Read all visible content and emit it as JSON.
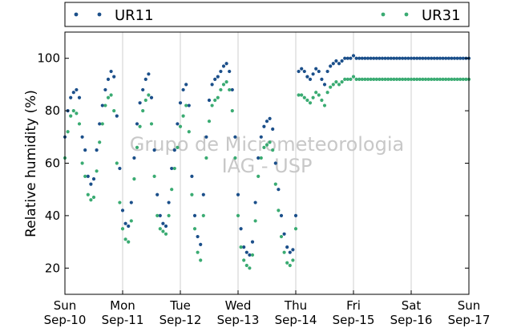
{
  "chart_data": {
    "type": "scatter",
    "title": "",
    "xlabel": "",
    "ylabel": "Relative humidity (%)",
    "xlim": [
      "2011-09-10 00:00",
      "2011-09-17 00:00"
    ],
    "ylim": [
      10,
      110
    ],
    "yticks": [
      20,
      40,
      60,
      80,
      100
    ],
    "grid": "vertical-day-lines",
    "legend": "top",
    "xticks": [
      {
        "day": "Sun",
        "date": "Sep-10"
      },
      {
        "day": "Mon",
        "date": "Sep-11"
      },
      {
        "day": "Tue",
        "date": "Sep-12"
      },
      {
        "day": "Wed",
        "date": "Sep-13"
      },
      {
        "day": "Thu",
        "date": "Sep-14"
      },
      {
        "day": "Fri",
        "date": "Sep-15"
      },
      {
        "day": "Sat",
        "date": "Sep-16"
      },
      {
        "day": "Sun",
        "date": "Sep-17"
      }
    ],
    "watermark": [
      "Grupo de Micrometeorologia",
      "IAG - USP"
    ],
    "series": [
      {
        "name": "UR11",
        "color": "#1b4f8a",
        "x_days": [
          0,
          0.05,
          0.1,
          0.15,
          0.2,
          0.25,
          0.3,
          0.35,
          0.4,
          0.45,
          0.5,
          0.55,
          0.6,
          0.65,
          0.7,
          0.75,
          0.8,
          0.85,
          0.9,
          0.95,
          1.0,
          1.05,
          1.1,
          1.15,
          1.2,
          1.25,
          1.3,
          1.35,
          1.4,
          1.45,
          1.5,
          1.55,
          1.6,
          1.65,
          1.7,
          1.75,
          1.8,
          1.85,
          1.9,
          1.95,
          2.0,
          2.05,
          2.1,
          2.15,
          2.2,
          2.25,
          2.3,
          2.35,
          2.4,
          2.45,
          2.5,
          2.55,
          2.6,
          2.65,
          2.7,
          2.75,
          2.8,
          2.85,
          2.9,
          2.95,
          3.0,
          3.05,
          3.1,
          3.15,
          3.2,
          3.25,
          3.3,
          3.35,
          3.4,
          3.45,
          3.5,
          3.55,
          3.6,
          3.65,
          3.7,
          3.75,
          3.8,
          3.85,
          3.9,
          3.95,
          4.0,
          4.05,
          4.1,
          4.15,
          4.2,
          4.25,
          4.3,
          4.35,
          4.4,
          4.45,
          4.5,
          4.55,
          4.6,
          4.65,
          4.7,
          4.75,
          4.8,
          4.85,
          4.9,
          4.95,
          5.0,
          5.05,
          5.1,
          5.15,
          5.2,
          5.25,
          5.3,
          5.35,
          5.4,
          5.45,
          5.5,
          5.55,
          5.6,
          5.65,
          5.7,
          5.75,
          5.8,
          5.85,
          5.9,
          5.95,
          6.0,
          6.05,
          6.1,
          6.15,
          6.2,
          6.25,
          6.3,
          6.35,
          6.4,
          6.45,
          6.5,
          6.55,
          6.6,
          6.65,
          6.7,
          6.75,
          6.8,
          6.85,
          6.9,
          6.95,
          7.0
        ],
        "values": [
          70,
          80,
          85,
          87,
          88,
          85,
          70,
          65,
          55,
          52,
          54,
          65,
          75,
          82,
          88,
          92,
          95,
          93,
          78,
          58,
          42,
          37,
          36,
          45,
          62,
          75,
          83,
          88,
          92,
          94,
          85,
          65,
          48,
          40,
          37,
          36,
          45,
          58,
          65,
          75,
          83,
          88,
          90,
          82,
          55,
          40,
          32,
          29,
          48,
          70,
          84,
          90,
          92,
          93,
          95,
          97,
          98,
          95,
          88,
          70,
          48,
          35,
          28,
          26,
          25,
          30,
          45,
          62,
          70,
          74,
          76,
          77,
          73,
          60,
          50,
          40,
          33,
          28,
          26,
          27,
          40,
          95,
          96,
          95,
          93,
          92,
          94,
          96,
          95,
          92,
          90,
          95,
          97,
          98,
          99,
          98,
          99,
          100,
          100,
          100,
          101,
          100,
          100,
          100,
          100,
          100,
          100,
          100,
          100,
          100,
          100,
          100,
          100,
          100,
          100,
          100,
          100,
          100,
          100,
          100,
          100,
          100,
          100,
          100,
          100,
          100,
          100,
          100,
          100,
          100,
          100,
          100,
          100,
          100,
          100,
          100,
          100,
          100,
          100,
          100,
          100
        ]
      },
      {
        "name": "UR31",
        "color": "#3aab72",
        "x_days": [
          0,
          0.05,
          0.1,
          0.15,
          0.2,
          0.25,
          0.3,
          0.35,
          0.4,
          0.45,
          0.5,
          0.55,
          0.6,
          0.65,
          0.7,
          0.75,
          0.8,
          0.85,
          0.9,
          0.95,
          1.0,
          1.05,
          1.1,
          1.15,
          1.2,
          1.25,
          1.3,
          1.35,
          1.4,
          1.45,
          1.5,
          1.55,
          1.6,
          1.65,
          1.7,
          1.75,
          1.8,
          1.85,
          1.9,
          1.95,
          2.0,
          2.05,
          2.1,
          2.15,
          2.2,
          2.25,
          2.3,
          2.35,
          2.4,
          2.45,
          2.5,
          2.55,
          2.6,
          2.65,
          2.7,
          2.75,
          2.8,
          2.85,
          2.9,
          2.95,
          3.0,
          3.05,
          3.1,
          3.15,
          3.2,
          3.25,
          3.3,
          3.35,
          3.4,
          3.45,
          3.5,
          3.55,
          3.6,
          3.65,
          3.7,
          3.75,
          3.8,
          3.85,
          3.9,
          3.95,
          4.0,
          4.05,
          4.1,
          4.15,
          4.2,
          4.25,
          4.3,
          4.35,
          4.4,
          4.45,
          4.5,
          4.55,
          4.6,
          4.65,
          4.7,
          4.75,
          4.8,
          4.85,
          4.9,
          4.95,
          5.0,
          5.05,
          5.1,
          5.15,
          5.2,
          5.25,
          5.3,
          5.35,
          5.4,
          5.45,
          5.5,
          5.55,
          5.6,
          5.65,
          5.7,
          5.75,
          5.8,
          5.85,
          5.9,
          5.95,
          6.0,
          6.05,
          6.1,
          6.15,
          6.2,
          6.25,
          6.3,
          6.35,
          6.4,
          6.45,
          6.5,
          6.55,
          6.6,
          6.65,
          6.7,
          6.75,
          6.8,
          6.85,
          6.9,
          6.95,
          7.0
        ],
        "values": [
          62,
          72,
          78,
          80,
          79,
          75,
          60,
          55,
          48,
          46,
          47,
          57,
          68,
          75,
          82,
          85,
          86,
          80,
          60,
          45,
          35,
          31,
          30,
          38,
          54,
          66,
          74,
          80,
          84,
          86,
          75,
          55,
          40,
          35,
          34,
          33,
          40,
          50,
          58,
          66,
          74,
          78,
          82,
          72,
          48,
          35,
          26,
          23,
          40,
          62,
          76,
          82,
          84,
          85,
          88,
          90,
          91,
          88,
          80,
          62,
          40,
          28,
          23,
          21,
          20,
          25,
          38,
          55,
          62,
          66,
          67,
          68,
          65,
          52,
          42,
          32,
          26,
          22,
          21,
          23,
          35,
          86,
          86,
          85,
          84,
          83,
          85,
          87,
          86,
          84,
          82,
          87,
          89,
          90,
          91,
          90,
          91,
          92,
          92,
          92,
          93,
          92,
          92,
          92,
          92,
          92,
          92,
          92,
          92,
          92,
          92,
          92,
          92,
          92,
          92,
          92,
          92,
          92,
          92,
          92,
          92,
          92,
          92,
          92,
          92,
          92,
          92,
          92,
          92,
          92,
          92,
          92,
          92,
          92,
          92,
          92,
          92,
          92,
          92,
          92,
          92
        ]
      }
    ]
  }
}
